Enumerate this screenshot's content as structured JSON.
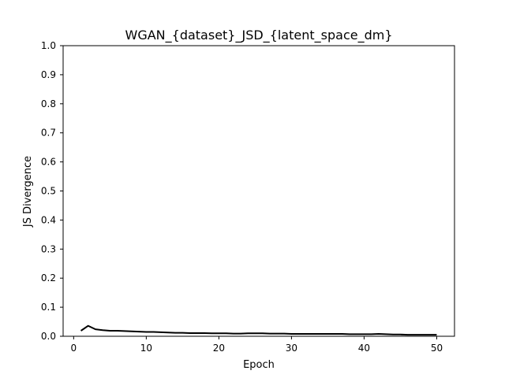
{
  "chart_data": {
    "type": "line",
    "title": "WGAN_{dataset}_JSD_{latent_space_dm}",
    "xlabel": "Epoch",
    "ylabel": "JS Divergence",
    "xlim": [
      -1.45,
      52.45
    ],
    "ylim": [
      0.0,
      1.0
    ],
    "xticks": [
      "0",
      "10",
      "20",
      "30",
      "40",
      "50"
    ],
    "yticks": [
      "0.0",
      "0.1",
      "0.2",
      "0.3",
      "0.4",
      "0.5",
      "0.6",
      "0.7",
      "0.8",
      "0.9",
      "1.0"
    ],
    "grid": false,
    "line_color": "#000000",
    "series": [
      {
        "x": [
          1,
          2,
          3,
          4,
          5,
          6,
          7,
          8,
          9,
          10,
          11,
          12,
          13,
          14,
          15,
          16,
          17,
          18,
          19,
          20,
          21,
          22,
          23,
          24,
          25,
          26,
          27,
          28,
          29,
          30,
          31,
          32,
          33,
          34,
          35,
          36,
          37,
          38,
          39,
          40,
          41,
          42,
          43,
          44,
          45,
          46,
          47,
          48,
          49,
          50
        ],
        "y": [
          0.019,
          0.036,
          0.024,
          0.021,
          0.019,
          0.019,
          0.018,
          0.017,
          0.016,
          0.015,
          0.015,
          0.014,
          0.013,
          0.012,
          0.012,
          0.011,
          0.011,
          0.011,
          0.01,
          0.01,
          0.01,
          0.009,
          0.009,
          0.01,
          0.01,
          0.01,
          0.009,
          0.009,
          0.009,
          0.008,
          0.008,
          0.008,
          0.008,
          0.008,
          0.008,
          0.008,
          0.008,
          0.007,
          0.007,
          0.007,
          0.007,
          0.008,
          0.007,
          0.006,
          0.006,
          0.005,
          0.005,
          0.005,
          0.005,
          0.005
        ]
      }
    ]
  }
}
